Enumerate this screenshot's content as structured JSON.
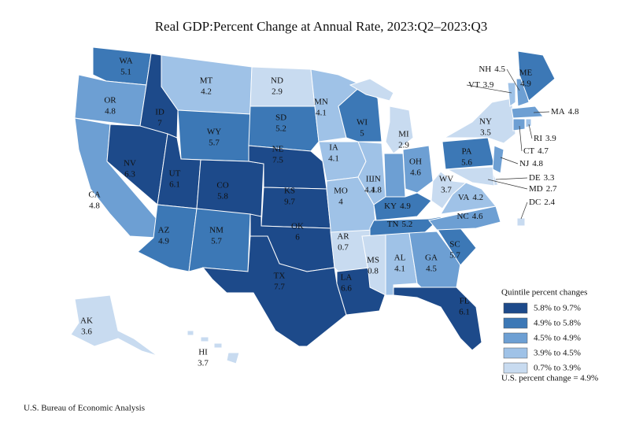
{
  "chart_data": {
    "type": "choropleth",
    "title": "Real GDP:Percent Change at Annual Rate, 2023:Q2–2023:Q3",
    "states": [
      {
        "name": "WA",
        "value": 5.1,
        "color": "#3c78b6"
      },
      {
        "name": "OR",
        "value": 4.8,
        "color": "#6d9fd3"
      },
      {
        "name": "CA",
        "value": 4.8,
        "color": "#6d9fd3"
      },
      {
        "name": "ID",
        "value": 7.0,
        "color": "#1d4a8a"
      },
      {
        "name": "NV",
        "value": 6.3,
        "color": "#1d4a8a"
      },
      {
        "name": "MT",
        "value": 4.2,
        "color": "#9fc2e7"
      },
      {
        "name": "WY",
        "value": 5.7,
        "color": "#3c78b6"
      },
      {
        "name": "UT",
        "value": 6.1,
        "color": "#1d4a8a"
      },
      {
        "name": "AZ",
        "value": 4.9,
        "color": "#3c78b6"
      },
      {
        "name": "CO",
        "value": 5.8,
        "color": "#1d4a8a"
      },
      {
        "name": "NM",
        "value": 5.7,
        "color": "#3c78b6"
      },
      {
        "name": "ND",
        "value": 2.9,
        "color": "#c8dbf0"
      },
      {
        "name": "SD",
        "value": 5.2,
        "color": "#3c78b6"
      },
      {
        "name": "NE",
        "value": 7.5,
        "color": "#1d4a8a"
      },
      {
        "name": "KS",
        "value": 9.7,
        "color": "#1d4a8a"
      },
      {
        "name": "OK",
        "value": 6.0,
        "color": "#1d4a8a"
      },
      {
        "name": "TX",
        "value": 7.7,
        "color": "#1d4a8a"
      },
      {
        "name": "MN",
        "value": 4.1,
        "color": "#9fc2e7"
      },
      {
        "name": "IA",
        "value": 4.1,
        "color": "#9fc2e7"
      },
      {
        "name": "MO",
        "value": 4.0,
        "color": "#9fc2e7"
      },
      {
        "name": "AR",
        "value": 0.7,
        "color": "#c8dbf0"
      },
      {
        "name": "LA",
        "value": 6.6,
        "color": "#1d4a8a"
      },
      {
        "name": "WI",
        "value": 5.0,
        "color": "#3c78b6"
      },
      {
        "name": "IL",
        "value": 4.1,
        "color": "#9fc2e7"
      },
      {
        "name": "MI",
        "value": 2.9,
        "color": "#c8dbf0"
      },
      {
        "name": "IN",
        "value": 4.8,
        "color": "#6d9fd3"
      },
      {
        "name": "OH",
        "value": 4.6,
        "color": "#6d9fd3"
      },
      {
        "name": "KY",
        "value": 4.9,
        "color": "#3c78b6"
      },
      {
        "name": "TN",
        "value": 5.2,
        "color": "#3c78b6"
      },
      {
        "name": "MS",
        "value": 0.8,
        "color": "#c8dbf0"
      },
      {
        "name": "AL",
        "value": 4.1,
        "color": "#9fc2e7"
      },
      {
        "name": "GA",
        "value": 4.5,
        "color": "#6d9fd3"
      },
      {
        "name": "FL",
        "value": 6.1,
        "color": "#1d4a8a"
      },
      {
        "name": "SC",
        "value": 5.7,
        "color": "#3c78b6"
      },
      {
        "name": "NC",
        "value": 4.6,
        "color": "#6d9fd3"
      },
      {
        "name": "VA",
        "value": 4.2,
        "color": "#9fc2e7"
      },
      {
        "name": "WV",
        "value": 3.7,
        "color": "#c8dbf0"
      },
      {
        "name": "PA",
        "value": 5.6,
        "color": "#3c78b6"
      },
      {
        "name": "NY",
        "value": 3.5,
        "color": "#c8dbf0"
      },
      {
        "name": "NJ",
        "value": 4.8,
        "color": "#6d9fd3"
      },
      {
        "name": "DE",
        "value": 3.3,
        "color": "#c8dbf0"
      },
      {
        "name": "MD",
        "value": 2.7,
        "color": "#c8dbf0"
      },
      {
        "name": "DC",
        "value": 2.4,
        "color": "#c8dbf0"
      },
      {
        "name": "VT",
        "value": 3.9,
        "color": "#9fc2e7"
      },
      {
        "name": "NH",
        "value": 4.5,
        "color": "#6d9fd3"
      },
      {
        "name": "ME",
        "value": 4.9,
        "color": "#3c78b6"
      },
      {
        "name": "MA",
        "value": 4.8,
        "color": "#6d9fd3"
      },
      {
        "name": "CT",
        "value": 4.7,
        "color": "#6d9fd3"
      },
      {
        "name": "RI",
        "value": 3.9,
        "color": "#9fc2e7"
      },
      {
        "name": "AK",
        "value": 3.6,
        "color": "#c8dbf0"
      },
      {
        "name": "HI",
        "value": 3.7,
        "color": "#c8dbf0"
      }
    ],
    "legend": {
      "title": "Quintile percent changes",
      "items": [
        {
          "label": "5.8% to 9.7%",
          "color": "#1d4a8a"
        },
        {
          "label": "4.9% to 5.8%",
          "color": "#3c78b6"
        },
        {
          "label": "4.5% to 4.9%",
          "color": "#6d9fd3"
        },
        {
          "label": "3.9% to 4.5%",
          "color": "#9fc2e7"
        },
        {
          "label": "0.7% to 3.9%",
          "color": "#c8dbf0"
        }
      ]
    },
    "note": "U.S. percent change = 4.9%",
    "source": "U.S. Bureau of Economic Analysis"
  }
}
